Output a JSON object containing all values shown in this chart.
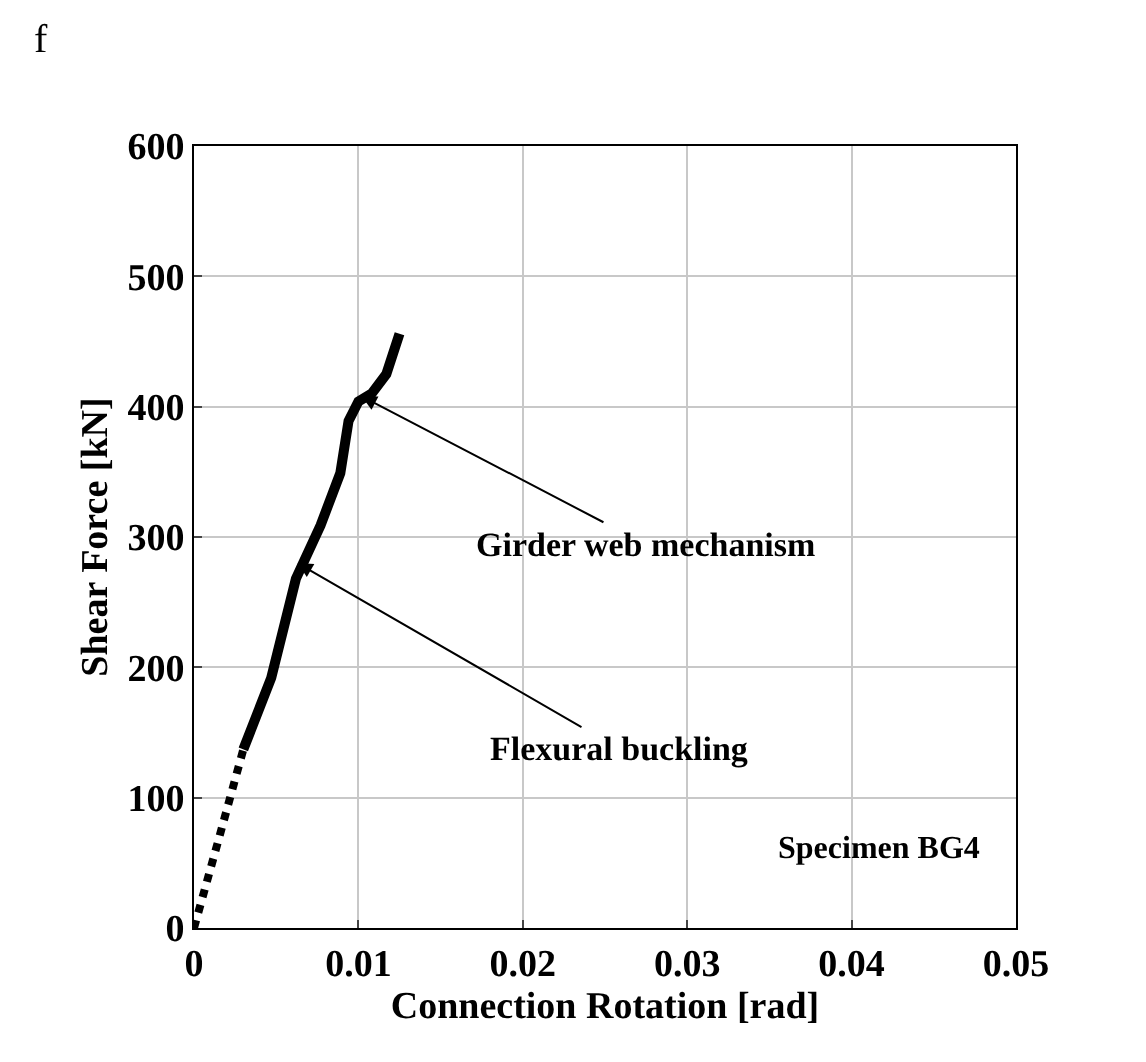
{
  "chart_data": {
    "type": "line",
    "xlabel": "Connection Rotation [rad]",
    "ylabel": "Shear Force [kN]",
    "xlim": [
      0,
      0.05
    ],
    "xticks": [
      0,
      0.01,
      0.02,
      0.03,
      0.04,
      0.05
    ],
    "ylim": [
      0,
      600
    ],
    "yticks": [
      0,
      100,
      200,
      300,
      400,
      500,
      600
    ],
    "grid": true,
    "legend": false,
    "series": [
      {
        "color": "#000000",
        "line_style": "dotted",
        "x": [
          0,
          0.0015,
          0.003
        ],
        "values": [
          0,
          68,
          137
        ]
      },
      {
        "color": "#000000",
        "line_style": "solid",
        "x": [
          0.003,
          0.0047,
          0.0062,
          0.0077,
          0.0089,
          0.0094,
          0.01,
          0.0108,
          0.0117,
          0.0125
        ],
        "values": [
          137,
          192,
          268,
          309,
          349,
          389,
          404,
          410,
          425,
          456
        ]
      }
    ],
    "annotations": [
      "f",
      {
        "text": "Girder web mechanism",
        "x": 0.0102,
        "y": 408
      },
      {
        "text": "Flexural buckling",
        "x": 0.0063,
        "y": 280
      },
      "Specimen BG4"
    ]
  }
}
